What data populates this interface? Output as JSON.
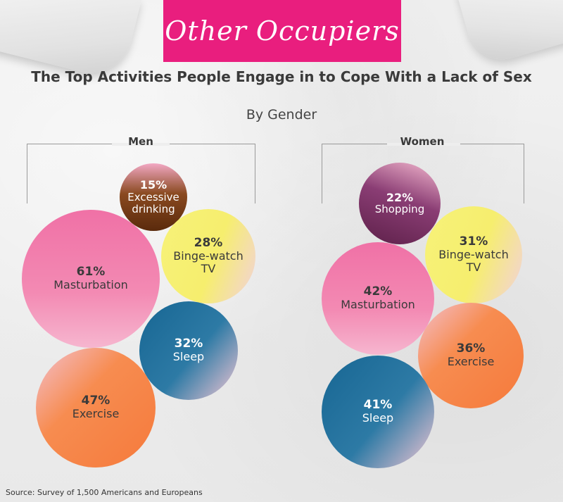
{
  "header": {
    "banner_title": "Other Occupiers",
    "subtitle": "The Top Activities People Engage in to Cope With a Lack of Sex",
    "group_caption": "By Gender"
  },
  "source": "Source: Survey of 1,500 Americans and Europeans",
  "chart_data": [
    {
      "type": "bubble",
      "title": "Men",
      "unit": "%",
      "categories": [
        "Excessive drinking",
        "Binge-watch TV",
        "Masturbation",
        "Sleep",
        "Exercise"
      ],
      "values": [
        15,
        28,
        61,
        32,
        47
      ],
      "labels": [
        {
          "pct": "15%",
          "lines": [
            "Excessive",
            "drinking"
          ]
        },
        {
          "pct": "28%",
          "lines": [
            "Binge-watch",
            "TV"
          ]
        },
        {
          "pct": "61%",
          "lines": [
            "Masturbation"
          ]
        },
        {
          "pct": "32%",
          "lines": [
            "Sleep"
          ]
        },
        {
          "pct": "47%",
          "lines": [
            "Exercise"
          ]
        }
      ],
      "colors": [
        "#6b3512",
        "#f5ef73",
        "#f06a9f",
        "#1c6d99",
        "#f57a3c"
      ]
    },
    {
      "type": "bubble",
      "title": "Women",
      "unit": "%",
      "categories": [
        "Shopping",
        "Binge-watch TV",
        "Masturbation",
        "Exercise",
        "Sleep"
      ],
      "values": [
        22,
        31,
        42,
        36,
        41
      ],
      "labels": [
        {
          "pct": "22%",
          "lines": [
            "Shopping"
          ]
        },
        {
          "pct": "31%",
          "lines": [
            "Binge-watch",
            "TV"
          ]
        },
        {
          "pct": "42%",
          "lines": [
            "Masturbation"
          ]
        },
        {
          "pct": "36%",
          "lines": [
            "Exercise"
          ]
        },
        {
          "pct": "41%",
          "lines": [
            "Sleep"
          ]
        }
      ],
      "colors": [
        "#6e2a5a",
        "#f5ef73",
        "#f06a9f",
        "#f57a3c",
        "#1c6d99"
      ]
    }
  ]
}
